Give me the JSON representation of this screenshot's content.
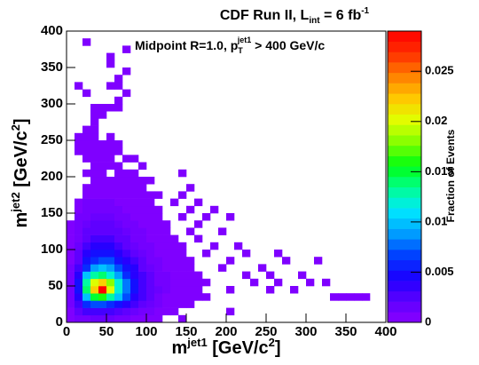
{
  "chart_data": {
    "type": "heatmap",
    "title": [
      "CDF Run II, L",
      "int",
      " = 6 fb",
      "-1"
    ],
    "annotation": [
      "Midpoint R=1.0, p",
      "T",
      "jet1",
      " > 400 GeV/c"
    ],
    "xlabel": [
      "m",
      "jet1",
      " [GeV/c",
      "2",
      "]"
    ],
    "ylabel": [
      "m",
      "jet2",
      " [GeV/c",
      "2",
      "]"
    ],
    "colorbar_label": "Fraction of Events",
    "xlim": [
      0,
      400
    ],
    "ylim": [
      0,
      400
    ],
    "xticks": [
      0,
      50,
      100,
      150,
      200,
      250,
      300,
      350,
      400
    ],
    "yticks": [
      0,
      50,
      100,
      150,
      200,
      250,
      300,
      350,
      400
    ],
    "zlim": [
      0,
      0.029
    ],
    "zticks": [
      0,
      0.005,
      0.01,
      0.015,
      0.02,
      0.025
    ],
    "colormap": [
      "#8a00ff",
      "#5a00ff",
      "#1a00ff",
      "#0040ff",
      "#00a0ff",
      "#00e8ff",
      "#00ff90",
      "#00ff10",
      "#80ff00",
      "#e0ff00",
      "#ffc800",
      "#ff8000",
      "#ff3000",
      "#ff0000"
    ],
    "rows": [
      {
        "y": 0,
        "x": [
          0,
          10,
          20,
          30,
          40,
          50,
          60,
          70,
          80,
          90,
          100,
          110,
          140
        ],
        "values": [
          0.0005,
          0.001,
          0.001,
          0.0015,
          0.0015,
          0.0015,
          0.001,
          0.001,
          0.0005,
          0.0005,
          0.0005,
          0.0005,
          0.0005
        ]
      },
      {
        "y": 10,
        "x": [
          0,
          10,
          20,
          30,
          40,
          50,
          60,
          70,
          80,
          90,
          100,
          110,
          120,
          130,
          200
        ],
        "values": [
          0.0005,
          0.002,
          0.003,
          0.003,
          0.003,
          0.003,
          0.0025,
          0.002,
          0.0015,
          0.001,
          0.001,
          0.0005,
          0.0005,
          0.0005,
          0.0005
        ]
      },
      {
        "y": 20,
        "x": [
          0,
          10,
          20,
          30,
          40,
          50,
          60,
          70,
          80,
          90,
          100,
          110,
          120,
          130,
          140,
          150
        ],
        "values": [
          0.001,
          0.003,
          0.006,
          0.007,
          0.007,
          0.006,
          0.005,
          0.004,
          0.003,
          0.002,
          0.0015,
          0.001,
          0.0005,
          0.0005,
          0.0005,
          0.0005
        ]
      },
      {
        "y": 30,
        "x": [
          0,
          10,
          20,
          30,
          40,
          50,
          60,
          70,
          80,
          90,
          100,
          110,
          120,
          130,
          140,
          150,
          160,
          170,
          330,
          340,
          350,
          360,
          370
        ],
        "values": [
          0.001,
          0.004,
          0.01,
          0.015,
          0.016,
          0.013,
          0.01,
          0.007,
          0.004,
          0.003,
          0.002,
          0.001,
          0.0005,
          0.0005,
          0.0005,
          0.0005,
          0.0005,
          0.0005,
          0.0005,
          0.0005,
          0.0005,
          0.0005,
          0.0005
        ]
      },
      {
        "y": 40,
        "x": [
          0,
          10,
          20,
          30,
          40,
          50,
          60,
          70,
          80,
          90,
          100,
          110,
          120,
          130,
          140,
          150,
          160,
          200,
          250,
          280
        ],
        "values": [
          0.001,
          0.005,
          0.014,
          0.022,
          0.029,
          0.02,
          0.012,
          0.008,
          0.005,
          0.003,
          0.002,
          0.0015,
          0.001,
          0.0005,
          0.0005,
          0.0005,
          0.0005,
          0.0005,
          0.0005,
          0.0005
        ]
      },
      {
        "y": 50,
        "x": [
          0,
          10,
          20,
          30,
          40,
          50,
          60,
          70,
          80,
          90,
          100,
          110,
          120,
          130,
          140,
          150,
          160,
          170,
          230,
          260,
          300,
          320
        ],
        "values": [
          0.001,
          0.005,
          0.013,
          0.02,
          0.022,
          0.018,
          0.012,
          0.008,
          0.005,
          0.003,
          0.002,
          0.001,
          0.001,
          0.0005,
          0.0005,
          0.0005,
          0.0005,
          0.0005,
          0.0005,
          0.0005,
          0.0005,
          0.0005
        ]
      },
      {
        "y": 60,
        "x": [
          0,
          10,
          20,
          30,
          40,
          50,
          60,
          70,
          80,
          90,
          100,
          110,
          120,
          130,
          140,
          150,
          160,
          220,
          250,
          290
        ],
        "values": [
          0.001,
          0.004,
          0.01,
          0.013,
          0.014,
          0.012,
          0.009,
          0.006,
          0.004,
          0.003,
          0.002,
          0.001,
          0.001,
          0.0005,
          0.0005,
          0.0005,
          0.0005,
          0.0005,
          0.0005,
          0.0005
        ]
      },
      {
        "y": 70,
        "x": [
          0,
          10,
          20,
          30,
          40,
          50,
          60,
          70,
          80,
          90,
          100,
          110,
          120,
          130,
          140,
          150,
          190,
          240
        ],
        "values": [
          0.001,
          0.003,
          0.006,
          0.009,
          0.01,
          0.009,
          0.007,
          0.005,
          0.004,
          0.002,
          0.0015,
          0.001,
          0.0005,
          0.0005,
          0.0005,
          0.0005,
          0.0005,
          0.0005
        ]
      },
      {
        "y": 80,
        "x": [
          0,
          10,
          20,
          30,
          40,
          50,
          60,
          70,
          80,
          90,
          100,
          110,
          120,
          130,
          140,
          150,
          200,
          270,
          310
        ],
        "values": [
          0.0005,
          0.002,
          0.005,
          0.006,
          0.007,
          0.007,
          0.005,
          0.004,
          0.003,
          0.002,
          0.001,
          0.001,
          0.0005,
          0.0005,
          0.0005,
          0.0005,
          0.0005,
          0.0005,
          0.0005
        ]
      },
      {
        "y": 90,
        "x": [
          0,
          10,
          20,
          30,
          40,
          50,
          60,
          70,
          80,
          90,
          100,
          110,
          120,
          130,
          140,
          170,
          220,
          260
        ],
        "values": [
          0.0005,
          0.002,
          0.004,
          0.005,
          0.005,
          0.005,
          0.004,
          0.003,
          0.002,
          0.0015,
          0.001,
          0.0005,
          0.0005,
          0.0005,
          0.0005,
          0.0005,
          0.0005,
          0.0005
        ]
      },
      {
        "y": 100,
        "x": [
          0,
          10,
          20,
          30,
          40,
          50,
          60,
          70,
          80,
          90,
          100,
          110,
          120,
          130,
          140,
          180,
          210
        ],
        "values": [
          0.0005,
          0.0015,
          0.003,
          0.004,
          0.004,
          0.004,
          0.003,
          0.002,
          0.0015,
          0.001,
          0.001,
          0.0005,
          0.0005,
          0.0005,
          0.0005,
          0.0005,
          0.0005
        ]
      },
      {
        "y": 110,
        "x": [
          0,
          10,
          20,
          30,
          40,
          50,
          60,
          70,
          80,
          90,
          100,
          110,
          120,
          130,
          160
        ],
        "values": [
          0.0005,
          0.001,
          0.002,
          0.003,
          0.003,
          0.003,
          0.002,
          0.002,
          0.001,
          0.001,
          0.0005,
          0.0005,
          0.0005,
          0.0005,
          0.0005
        ]
      },
      {
        "y": 120,
        "x": [
          0,
          10,
          20,
          30,
          40,
          50,
          60,
          70,
          80,
          90,
          100,
          110,
          120,
          150,
          190
        ],
        "values": [
          0.0005,
          0.001,
          0.002,
          0.002,
          0.002,
          0.002,
          0.002,
          0.0015,
          0.001,
          0.001,
          0.0005,
          0.0005,
          0.0005,
          0.0005,
          0.0005
        ]
      },
      {
        "y": 130,
        "x": [
          0,
          10,
          20,
          30,
          40,
          50,
          60,
          70,
          80,
          90,
          100,
          110,
          120,
          160
        ],
        "values": [
          0.0005,
          0.001,
          0.0015,
          0.002,
          0.002,
          0.002,
          0.0015,
          0.001,
          0.001,
          0.0005,
          0.0005,
          0.0005,
          0.0005,
          0.0005
        ]
      },
      {
        "y": 140,
        "x": [
          10,
          20,
          30,
          40,
          50,
          60,
          70,
          80,
          90,
          100,
          110,
          140,
          170,
          200
        ],
        "values": [
          0.001,
          0.001,
          0.0015,
          0.0015,
          0.0015,
          0.001,
          0.001,
          0.0005,
          0.0005,
          0.0005,
          0.0005,
          0.0005,
          0.0005,
          0.0005
        ]
      },
      {
        "y": 150,
        "x": [
          10,
          20,
          30,
          40,
          50,
          60,
          70,
          80,
          90,
          100,
          110,
          150,
          180
        ],
        "values": [
          0.0005,
          0.001,
          0.001,
          0.001,
          0.001,
          0.001,
          0.0005,
          0.0005,
          0.0005,
          0.0005,
          0.0005,
          0.0005,
          0.0005
        ]
      },
      {
        "y": 160,
        "x": [
          10,
          20,
          30,
          40,
          50,
          60,
          70,
          80,
          90,
          100,
          130,
          160
        ],
        "values": [
          0.0005,
          0.001,
          0.001,
          0.001,
          0.001,
          0.0005,
          0.0005,
          0.0005,
          0.0005,
          0.0005,
          0.0005,
          0.0005
        ]
      },
      {
        "y": 170,
        "x": [
          20,
          30,
          40,
          50,
          60,
          70,
          80,
          90,
          100,
          110,
          140
        ],
        "values": [
          0.0005,
          0.0005,
          0.0005,
          0.0005,
          0.0005,
          0.0005,
          0.0005,
          0.0005,
          0.0005,
          0.0005,
          0.0005
        ]
      },
      {
        "y": 180,
        "x": [
          20,
          30,
          40,
          50,
          60,
          70,
          80,
          90,
          150
        ],
        "values": [
          0.0005,
          0.0005,
          0.0005,
          0.0005,
          0.0005,
          0.0005,
          0.0005,
          0.0005,
          0.0005
        ]
      },
      {
        "y": 190,
        "x": [
          30,
          40,
          50,
          60,
          70,
          80,
          90,
          100
        ],
        "values": [
          0.0005,
          0.0005,
          0.0005,
          0.0005,
          0.0005,
          0.0005,
          0.0005,
          0.0005
        ]
      },
      {
        "y": 200,
        "x": [
          20,
          30,
          40,
          60,
          70,
          80,
          140
        ],
        "values": [
          0.0005,
          0.0005,
          0.0005,
          0.0005,
          0.0005,
          0.0005,
          0.0005
        ]
      },
      {
        "y": 210,
        "x": [
          30,
          40,
          50,
          60,
          90
        ],
        "values": [
          0.0005,
          0.0005,
          0.0005,
          0.0005,
          0.0005
        ]
      },
      {
        "y": 220,
        "x": [
          20,
          30,
          40,
          50,
          70,
          80
        ],
        "values": [
          0.0005,
          0.0005,
          0.0005,
          0.0005,
          0.0005,
          0.0005
        ]
      },
      {
        "y": 230,
        "x": [
          10,
          20,
          30,
          40,
          50,
          60
        ],
        "values": [
          0.0005,
          0.0005,
          0.0005,
          0.0005,
          0.0005,
          0.0005
        ]
      },
      {
        "y": 240,
        "x": [
          10,
          20,
          30,
          40,
          50,
          60
        ],
        "values": [
          0.0005,
          0.0005,
          0.0005,
          0.0005,
          0.0005,
          0.0005
        ]
      },
      {
        "y": 250,
        "x": [
          10,
          20,
          30,
          50
        ],
        "values": [
          0.0005,
          0.0005,
          0.0005,
          0.0005
        ]
      },
      {
        "y": 260,
        "x": [
          20,
          30
        ],
        "values": [
          0.0005,
          0.0005
        ]
      },
      {
        "y": 270,
        "x": [
          30
        ],
        "values": [
          0.0005
        ]
      },
      {
        "y": 280,
        "x": [
          30,
          40
        ],
        "values": [
          0.0005,
          0.0005
        ]
      },
      {
        "y": 290,
        "x": [
          30,
          40,
          50,
          60
        ],
        "values": [
          0.0005,
          0.0005,
          0.0005,
          0.0005
        ]
      },
      {
        "y": 300,
        "x": [
          60
        ],
        "values": [
          0.0005
        ]
      },
      {
        "y": 310,
        "x": [
          20,
          70
        ],
        "values": [
          0.0005,
          0.0005
        ]
      },
      {
        "y": 320,
        "x": [
          10,
          50,
          60
        ],
        "values": [
          0.0005,
          0.0005,
          0.0005
        ]
      },
      {
        "y": 330,
        "x": [
          60
        ],
        "values": [
          0.0005
        ]
      },
      {
        "y": 340,
        "x": [
          70
        ],
        "values": [
          0.0005
        ]
      },
      {
        "y": 350,
        "x": [
          50
        ],
        "values": [
          0.0005
        ]
      },
      {
        "y": 360,
        "x": [
          50
        ],
        "values": [
          0.0005
        ]
      },
      {
        "y": 370,
        "x": [
          70
        ],
        "values": [
          0.0005
        ]
      },
      {
        "y": 380,
        "x": [
          20
        ],
        "values": [
          0.0005
        ]
      }
    ]
  }
}
